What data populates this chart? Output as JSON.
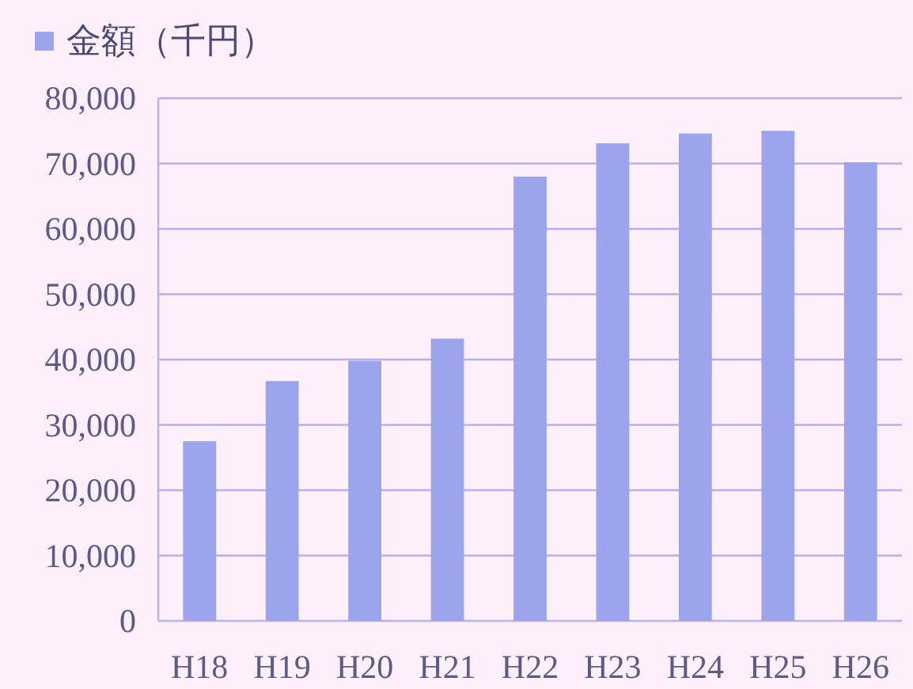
{
  "chart_data": {
    "type": "bar",
    "categories": [
      "H18",
      "H19",
      "H20",
      "H21",
      "H22",
      "H23",
      "H24",
      "H25",
      "H26"
    ],
    "series": [
      {
        "name": "金額（千円）",
        "color": "#9ba4ec",
        "values": [
          27500,
          36700,
          39800,
          43200,
          68000,
          73100,
          74600,
          75000,
          70200
        ]
      }
    ],
    "ylim": [
      0,
      80000
    ],
    "yticks": [
      {
        "value": 0,
        "label": "0"
      },
      {
        "value": 10000,
        "label": "10,000"
      },
      {
        "value": 20000,
        "label": "20,000"
      },
      {
        "value": 30000,
        "label": "30,000"
      },
      {
        "value": 40000,
        "label": "40,000"
      },
      {
        "value": 50000,
        "label": "50,000"
      },
      {
        "value": 60000,
        "label": "60,000"
      },
      {
        "value": 70000,
        "label": "70,000"
      },
      {
        "value": 80000,
        "label": "80,000"
      }
    ],
    "grid": "y",
    "legend": "top left"
  }
}
